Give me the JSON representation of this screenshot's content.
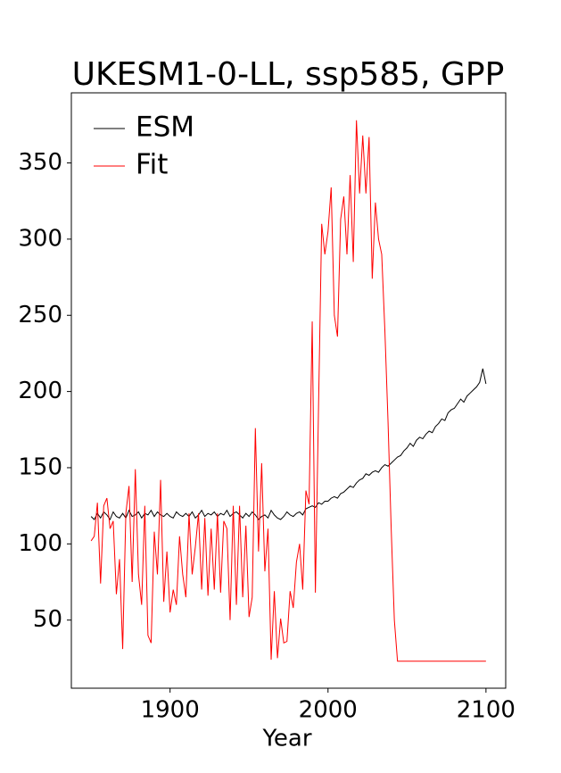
{
  "chart_data": {
    "type": "line",
    "title": "UKESM1-0-LL, ssp585, GPP",
    "xlabel": "Year",
    "x": [
      1850,
      1852,
      1854,
      1856,
      1858,
      1860,
      1862,
      1864,
      1866,
      1868,
      1870,
      1872,
      1874,
      1876,
      1878,
      1880,
      1882,
      1884,
      1886,
      1888,
      1890,
      1892,
      1894,
      1896,
      1898,
      1900,
      1902,
      1904,
      1906,
      1908,
      1910,
      1912,
      1914,
      1916,
      1918,
      1920,
      1922,
      1924,
      1926,
      1928,
      1930,
      1932,
      1934,
      1936,
      1938,
      1940,
      1942,
      1944,
      1946,
      1948,
      1950,
      1952,
      1954,
      1956,
      1958,
      1960,
      1962,
      1964,
      1966,
      1968,
      1970,
      1972,
      1974,
      1976,
      1978,
      1980,
      1982,
      1984,
      1986,
      1988,
      1990,
      1992,
      1994,
      1996,
      1998,
      2000,
      2002,
      2004,
      2006,
      2008,
      2010,
      2012,
      2014,
      2016,
      2018,
      2020,
      2022,
      2024,
      2026,
      2028,
      2030,
      2032,
      2034,
      2036,
      2038,
      2040,
      2042,
      2044,
      2046,
      2048,
      2050,
      2052,
      2054,
      2056,
      2058,
      2060,
      2062,
      2064,
      2066,
      2068,
      2070,
      2072,
      2074,
      2076,
      2078,
      2080,
      2082,
      2084,
      2086,
      2088,
      2090,
      2092,
      2094,
      2096,
      2098,
      2100
    ],
    "series": [
      {
        "name": "ESM",
        "color": "#000000",
        "values": [
          118,
          116,
          120,
          117,
          121,
          119,
          116,
          121,
          118,
          117,
          120,
          117,
          122,
          118,
          119,
          121,
          117,
          120,
          119,
          122,
          118,
          121,
          119,
          118,
          120,
          118,
          117,
          121,
          119,
          118,
          120,
          118,
          121,
          117,
          119,
          122,
          118,
          120,
          119,
          121,
          118,
          120,
          119,
          122,
          118,
          120,
          121,
          119,
          117,
          120,
          118,
          121,
          119,
          116,
          118,
          119,
          117,
          122,
          119,
          117,
          116,
          118,
          121,
          119,
          118,
          120,
          121,
          119,
          123,
          124,
          125,
          124,
          127,
          126,
          128,
          128,
          130,
          131,
          130,
          133,
          134,
          136,
          138,
          137,
          140,
          142,
          143,
          146,
          145,
          147,
          148,
          147,
          150,
          152,
          151,
          153,
          155,
          157,
          158,
          161,
          163,
          166,
          164,
          168,
          170,
          169,
          172,
          174,
          173,
          177,
          179,
          182,
          181,
          186,
          188,
          189,
          192,
          195,
          193,
          197,
          199,
          201,
          203,
          206,
          215,
          205
        ]
      },
      {
        "name": "Fit",
        "color": "#ff0000",
        "values": [
          102,
          105,
          127,
          74,
          125,
          130,
          110,
          115,
          67,
          90,
          31,
          120,
          138,
          75,
          149,
          80,
          60,
          125,
          40,
          35,
          108,
          80,
          142,
          62,
          95,
          55,
          70,
          60,
          105,
          80,
          65,
          120,
          80,
          98,
          120,
          70,
          117,
          66,
          110,
          70,
          120,
          68,
          115,
          110,
          50,
          125,
          60,
          125,
          65,
          112,
          52,
          65,
          176,
          95,
          153,
          82,
          110,
          24,
          69,
          25,
          51,
          35,
          36,
          69,
          58,
          88,
          100,
          70,
          135,
          126,
          246,
          68,
          190,
          310,
          290,
          305,
          334,
          250,
          236,
          313,
          328,
          290,
          342,
          285,
          378,
          330,
          368,
          330,
          367,
          274,
          324,
          300,
          290,
          240,
          180,
          110,
          50,
          23,
          23,
          23,
          23,
          23,
          23,
          23,
          23,
          23,
          23,
          23,
          23,
          23,
          23,
          23,
          23,
          23,
          23,
          23,
          23,
          23,
          23,
          23,
          23,
          23,
          23,
          23,
          23,
          23
        ]
      }
    ],
    "xlim": [
      1837.5,
      2112.5
    ],
    "xticks": [
      1900,
      2000,
      2100
    ],
    "ylim": [
      5.3,
      396.0
    ],
    "yticks": [
      50,
      100,
      150,
      200,
      250,
      300,
      350
    ],
    "legend": "upper left"
  }
}
